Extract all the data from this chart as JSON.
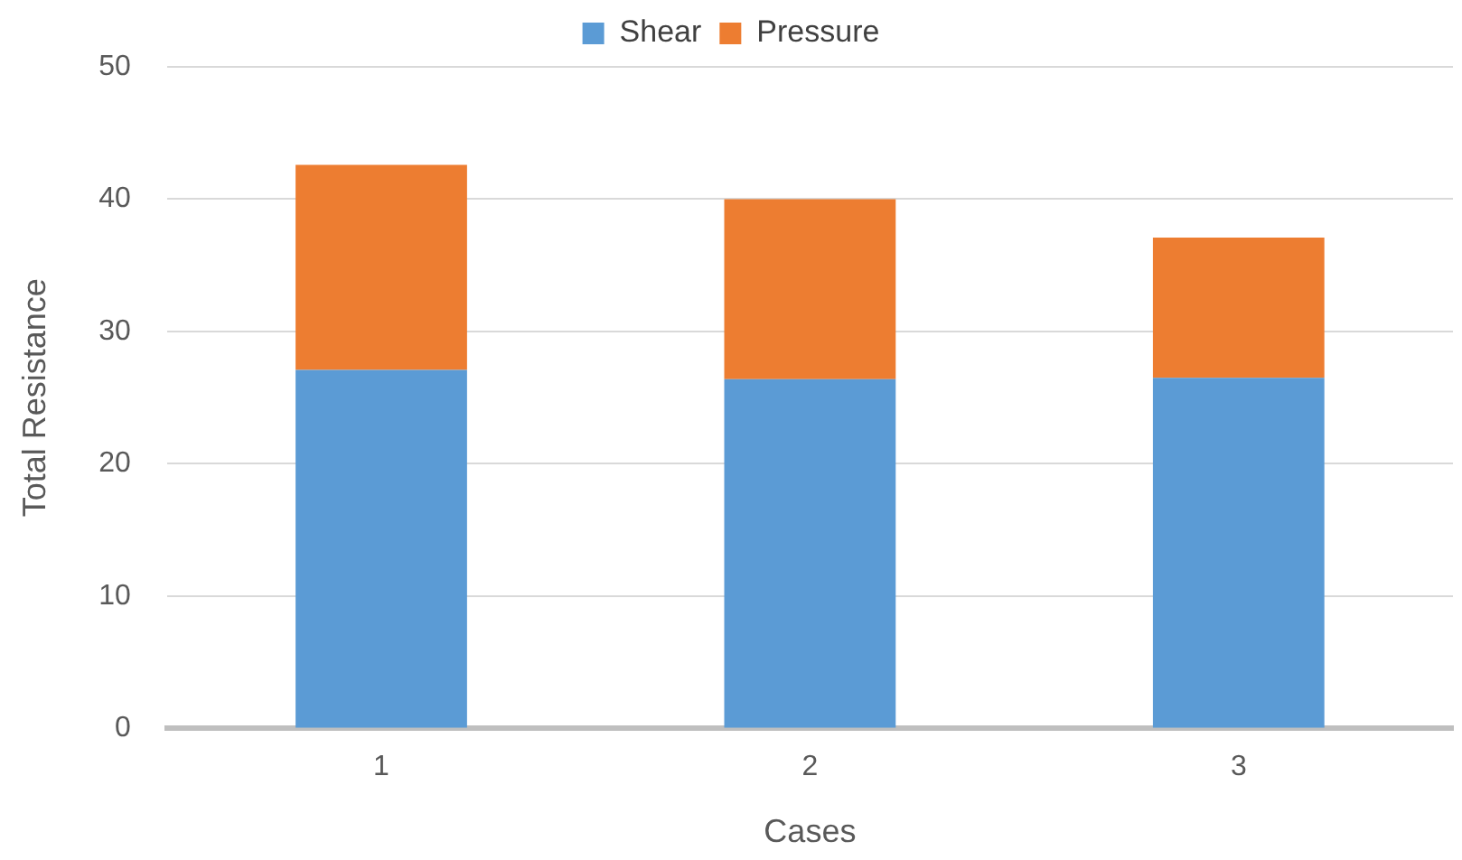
{
  "chart_data": {
    "type": "bar",
    "stacked": true,
    "xlabel": "Cases",
    "ylabel": "Total Resistance",
    "categories": [
      "1",
      "2",
      "3"
    ],
    "series": [
      {
        "name": "Shear",
        "color": "#5b9bd5",
        "values": [
          27.1,
          26.4,
          26.5
        ]
      },
      {
        "name": "Pressure",
        "color": "#ed7d31",
        "values": [
          15.5,
          13.6,
          10.6
        ]
      }
    ],
    "ylim": [
      0,
      50
    ],
    "yticks": [
      0,
      10,
      20,
      30,
      40,
      50
    ],
    "grid": "y",
    "legend": "top"
  }
}
